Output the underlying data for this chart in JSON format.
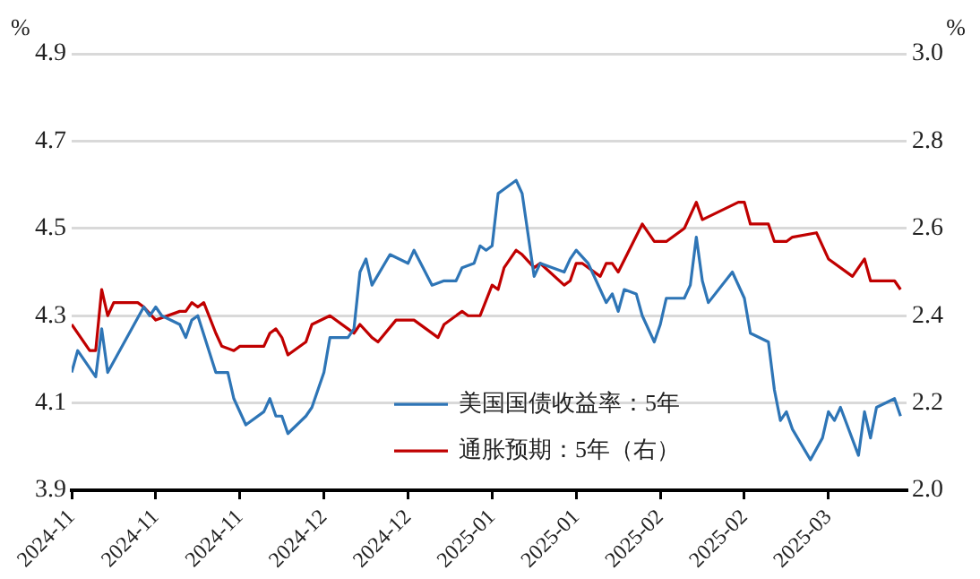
{
  "chart_data": {
    "type": "line",
    "ylabel": "%",
    "y2label": "%",
    "xlim": [
      "2024-11-01",
      "2025-03-20"
    ],
    "xticks": [
      {
        "value": "2024-11-01",
        "label": "2024-11"
      },
      {
        "value": "2024-11-15",
        "label": "2024-11"
      },
      {
        "value": "2024-11-29",
        "label": "2024-11"
      },
      {
        "value": "2024-12-13",
        "label": "2024-12"
      },
      {
        "value": "2024-12-27",
        "label": "2024-12"
      },
      {
        "value": "2025-01-10",
        "label": "2025-01"
      },
      {
        "value": "2025-01-24",
        "label": "2025-01"
      },
      {
        "value": "2025-02-07",
        "label": "2025-02"
      },
      {
        "value": "2025-02-21",
        "label": "2025-02"
      },
      {
        "value": "2025-03-07",
        "label": "2025-03"
      }
    ],
    "ylim": [
      3.9,
      4.9
    ],
    "yticks": [
      3.9,
      4.1,
      4.3,
      4.5,
      4.7,
      4.9
    ],
    "y2lim": [
      2.0,
      3.0
    ],
    "y2ticks": [
      {
        "value": 2,
        "label": "2.0"
      },
      2.2,
      2.4,
      2.6,
      2.8,
      {
        "value": 3,
        "label": "3.0"
      }
    ],
    "grid": "y",
    "legend": "bottom",
    "marker": "none",
    "line_style": "solid",
    "series": [
      {
        "name": "美国国债收益率：5年",
        "color": "#2e75b6",
        "x": [
          "2024-11-01",
          "2024-11-02",
          "2024-11-05",
          "2024-11-06",
          "2024-11-07",
          "2024-11-13",
          "2024-11-14",
          "2024-11-15",
          "2024-11-16",
          "2024-11-19",
          "2024-11-20",
          "2024-11-21",
          "2024-11-22",
          "2024-11-25",
          "2024-11-27",
          "2024-11-28",
          "2024-11-30",
          "2024-12-03",
          "2024-12-04",
          "2024-12-05",
          "2024-12-06",
          "2024-12-07",
          "2024-12-10",
          "2024-12-11",
          "2024-12-13",
          "2024-12-14",
          "2024-12-17",
          "2024-12-18",
          "2024-12-19",
          "2024-12-20",
          "2024-12-21",
          "2024-12-24",
          "2024-12-27",
          "2024-12-28",
          "2024-12-31",
          "2025-01-02",
          "2025-01-04",
          "2025-01-05",
          "2025-01-07",
          "2025-01-08",
          "2025-01-09",
          "2025-01-10",
          "2025-01-11",
          "2025-01-12",
          "2025-01-14",
          "2025-01-15",
          "2025-01-17",
          "2025-01-18",
          "2025-01-22",
          "2025-01-23",
          "2025-01-24",
          "2025-01-26",
          "2025-01-28",
          "2025-01-29",
          "2025-01-30",
          "2025-01-31",
          "2025-02-01",
          "2025-02-03",
          "2025-02-04",
          "2025-02-06",
          "2025-02-07",
          "2025-02-08",
          "2025-02-11",
          "2025-02-12",
          "2025-02-13",
          "2025-02-14",
          "2025-02-15",
          "2025-02-19",
          "2025-02-21",
          "2025-02-22",
          "2025-02-25",
          "2025-02-26",
          "2025-02-27",
          "2025-02-28",
          "2025-03-01",
          "2025-03-04",
          "2025-03-06",
          "2025-03-07",
          "2025-03-08",
          "2025-03-09",
          "2025-03-12",
          "2025-03-13",
          "2025-03-14",
          "2025-03-15",
          "2025-03-18",
          "2025-03-19"
        ],
        "values": [
          4.17,
          4.22,
          4.16,
          4.27,
          4.17,
          4.32,
          4.3,
          4.32,
          4.3,
          4.28,
          4.25,
          4.29,
          4.3,
          4.17,
          4.17,
          4.11,
          4.05,
          4.08,
          4.11,
          4.07,
          4.07,
          4.03,
          4.07,
          4.09,
          4.17,
          4.25,
          4.25,
          4.27,
          4.4,
          4.43,
          4.37,
          4.44,
          4.42,
          4.45,
          4.37,
          4.38,
          4.38,
          4.41,
          4.42,
          4.46,
          4.45,
          4.46,
          4.58,
          4.59,
          4.61,
          4.58,
          4.39,
          4.42,
          4.4,
          4.43,
          4.45,
          4.42,
          4.36,
          4.33,
          4.35,
          4.31,
          4.36,
          4.35,
          4.3,
          4.24,
          4.28,
          4.34,
          4.34,
          4.37,
          4.48,
          4.38,
          4.33,
          4.4,
          4.34,
          4.26,
          4.24,
          4.13,
          4.06,
          4.08,
          4.04,
          3.97,
          4.02,
          4.08,
          4.06,
          4.09,
          3.98,
          4.08,
          4.02,
          4.09,
          4.11,
          4.07
        ]
      },
      {
        "name": "通胀预期：5年（右）",
        "color": "#c00000",
        "axis": "y2",
        "x": [
          "2024-11-01",
          "2024-11-04",
          "2024-11-05",
          "2024-11-06",
          "2024-11-07",
          "2024-11-08",
          "2024-11-12",
          "2024-11-13",
          "2024-11-15",
          "2024-11-19",
          "2024-11-20",
          "2024-11-21",
          "2024-11-22",
          "2024-11-23",
          "2024-11-25",
          "2024-11-26",
          "2024-11-28",
          "2024-11-29",
          "2024-12-03",
          "2024-12-04",
          "2024-12-05",
          "2024-12-06",
          "2024-12-07",
          "2024-12-10",
          "2024-12-11",
          "2024-12-14",
          "2024-12-17",
          "2024-12-18",
          "2024-12-19",
          "2024-12-21",
          "2024-12-22",
          "2024-12-25",
          "2024-12-28",
          "2025-01-01",
          "2025-01-02",
          "2025-01-05",
          "2025-01-06",
          "2025-01-08",
          "2025-01-10",
          "2025-01-11",
          "2025-01-12",
          "2025-01-14",
          "2025-01-15",
          "2025-01-17",
          "2025-01-18",
          "2025-01-22",
          "2025-01-23",
          "2025-01-24",
          "2025-01-25",
          "2025-01-28",
          "2025-01-29",
          "2025-01-30",
          "2025-01-31",
          "2025-02-04",
          "2025-02-06",
          "2025-02-08",
          "2025-02-11",
          "2025-02-13",
          "2025-02-14",
          "2025-02-20",
          "2025-02-21",
          "2025-02-22",
          "2025-02-25",
          "2025-02-26",
          "2025-02-28",
          "2025-03-01",
          "2025-03-05",
          "2025-03-07",
          "2025-03-11",
          "2025-03-13",
          "2025-03-14",
          "2025-03-18",
          "2025-03-19"
        ],
        "values": [
          2.38,
          2.32,
          2.32,
          2.46,
          2.4,
          2.43,
          2.43,
          2.42,
          2.39,
          2.41,
          2.41,
          2.43,
          2.42,
          2.43,
          2.36,
          2.33,
          2.32,
          2.33,
          2.33,
          2.36,
          2.37,
          2.35,
          2.31,
          2.34,
          2.38,
          2.4,
          2.37,
          2.36,
          2.38,
          2.35,
          2.34,
          2.39,
          2.39,
          2.35,
          2.38,
          2.41,
          2.4,
          2.4,
          2.47,
          2.46,
          2.51,
          2.55,
          2.54,
          2.51,
          2.52,
          2.47,
          2.48,
          2.52,
          2.52,
          2.49,
          2.52,
          2.52,
          2.5,
          2.61,
          2.57,
          2.57,
          2.6,
          2.66,
          2.62,
          2.66,
          2.66,
          2.61,
          2.61,
          2.57,
          2.57,
          2.58,
          2.59,
          2.53,
          2.49,
          2.53,
          2.48,
          2.48,
          2.46
        ]
      }
    ]
  }
}
